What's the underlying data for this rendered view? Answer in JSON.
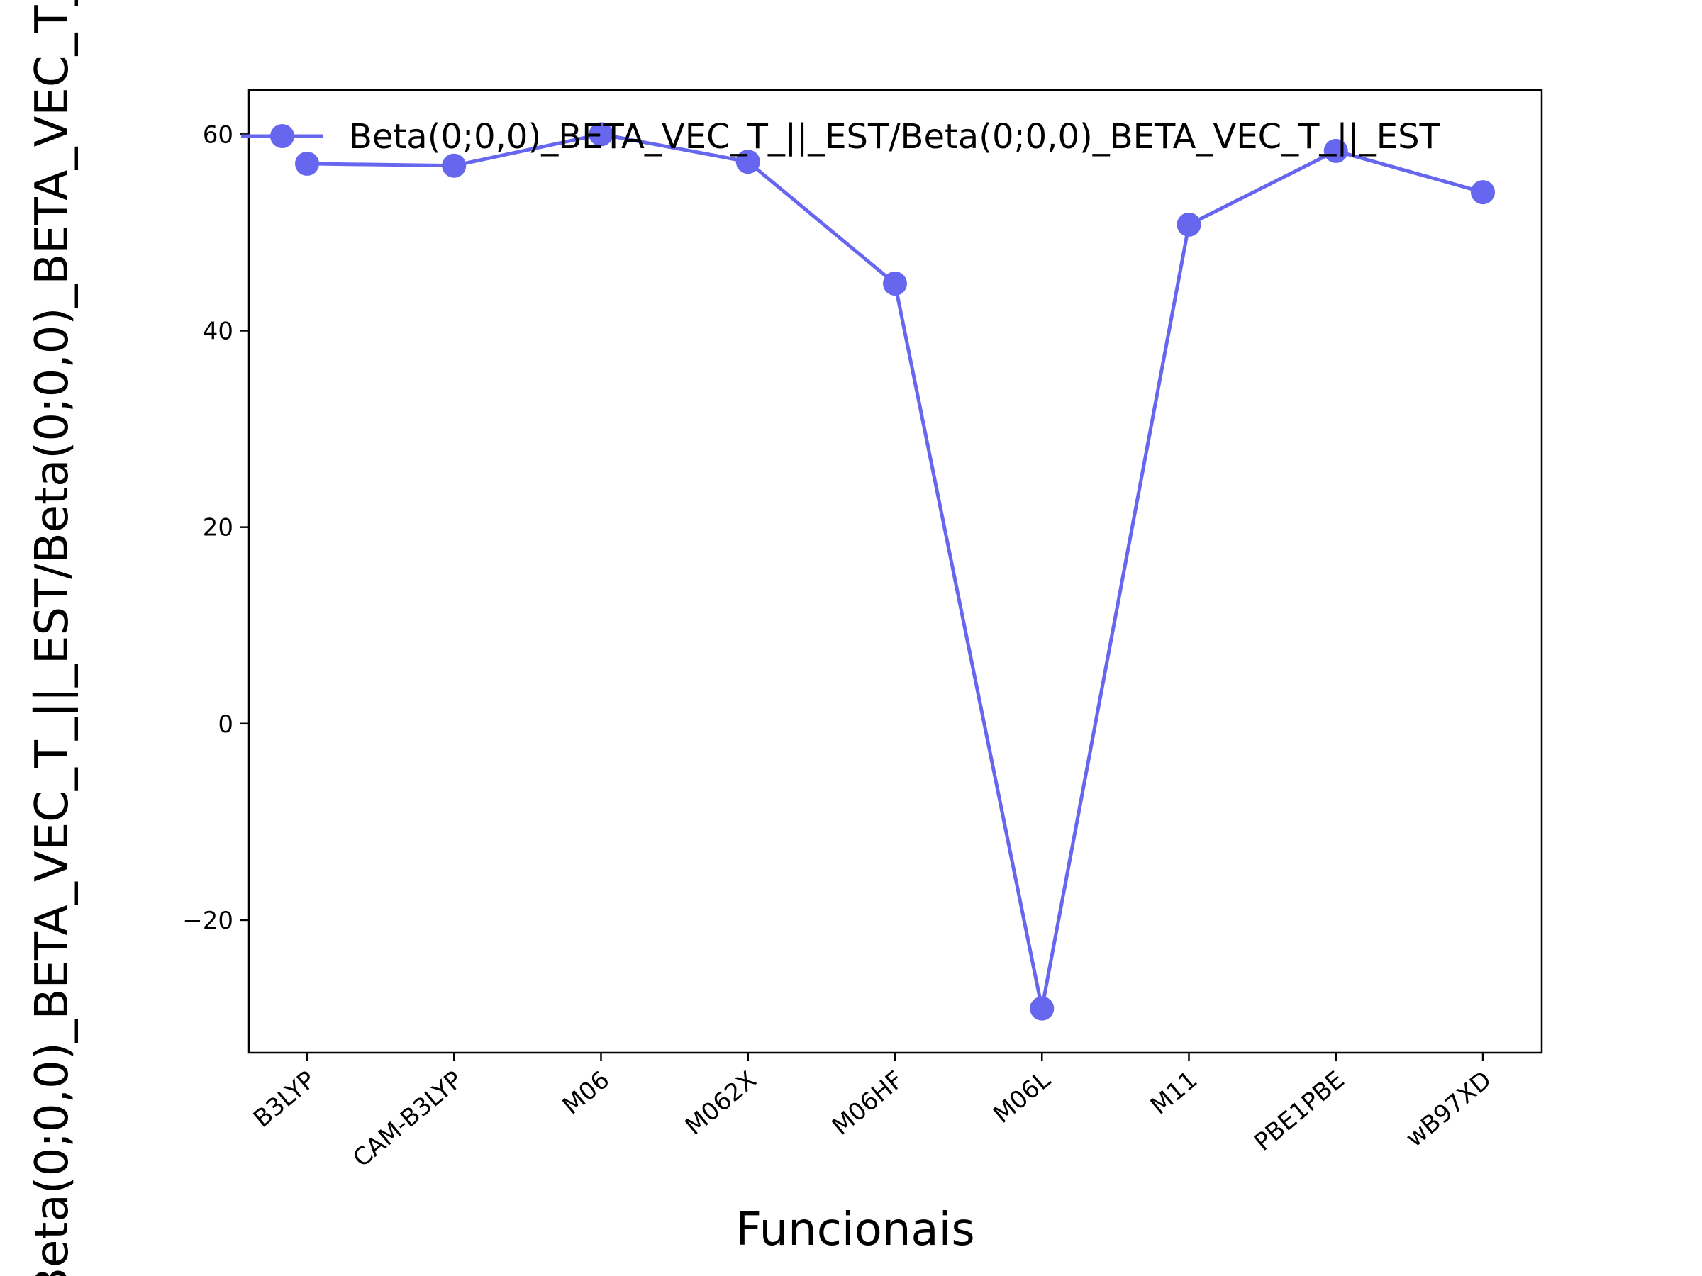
{
  "chart_data": {
    "type": "line",
    "title": "",
    "xlabel": "Funcionais",
    "ylabel": "Beta(0;0,0)_BETA_VEC_T_||_EST/Beta(0;0,0)_BETA_VEC_T_||_EST",
    "categories": [
      "B3LYP",
      "CAM-B3LYP",
      "M06",
      "M062X",
      "M06HF",
      "M06L",
      "M11",
      "PBE1PBE",
      "wB97XD"
    ],
    "series": [
      {
        "name": "Beta(0;0,0)_BETA_VEC_T_||_EST/Beta(0;0,0)_BETA_VEC_T_||_EST",
        "values": [
          57.0,
          56.8,
          60.0,
          57.2,
          44.8,
          -29.0,
          50.8,
          58.3,
          54.1
        ],
        "color": "#6666ee"
      }
    ],
    "yticks": [
      -20,
      0,
      20,
      40,
      60
    ],
    "ylim": [
      -33.5,
      64.5
    ],
    "grid": false,
    "legend_position": "top"
  }
}
